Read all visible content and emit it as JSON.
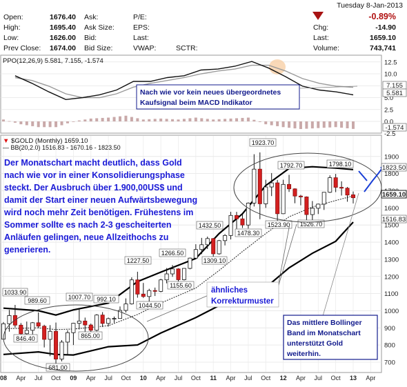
{
  "quote": {
    "open_label": "Open:",
    "open_value": "1676.40",
    "high_label": "High:",
    "high_value": "1695.40",
    "low_label": "Low:",
    "low_value": "1626.00",
    "prevclose_label": "Prev Close:",
    "prevclose_value": "1674.00",
    "ask_label": "Ask:",
    "asksize_label": "Ask Size:",
    "bid_label": "Bid:",
    "bidsize_label": "Bid Size:",
    "pe_label": "P/E:",
    "eps_label": "EPS:",
    "last_label": "Last:",
    "vwap_label": "VWAP:",
    "sctr_label": "SCTR:",
    "date": "Tuesday  8-Jan-2013",
    "pct_change": "-0.89%",
    "chg_label": "Chg:",
    "chg_value": "-14.90",
    "last2_label": "Last:",
    "last_value": "1659.10",
    "volume_label": "Volume:",
    "volume_value": "743,741",
    "down_color": "#b01010"
  },
  "ppo": {
    "legend": "PPO(12,26,9) 5.581, 7.155, -1.574",
    "note_line1": "Nach wie vor kein neues übergeordnetes",
    "note_line2": "Kaufsignal beim MACD Indikator",
    "ticks": [
      "12.5",
      "10.0",
      "7.5",
      "5.0",
      "2.5",
      "0.0",
      "-2.5"
    ],
    "badge_signal": "7.155",
    "badge_ppo": "5.581",
    "badge_hist": "-1.574"
  },
  "main": {
    "legend_symbol": "$GOLD (Monthly) 1659.10",
    "legend_bb": "BB(20,2.0) 1516.83 - 1670.16 - 1823.50",
    "text_lines": [
      "Der Monatschart macht deutlich, dass Gold",
      "nach wie vor in einer Konsolidierungsphase",
      "steckt. Der Ausbruch über 1.900,00US$ und",
      "damit der Start einer neuen Aufwärtsbewegung",
      "wird noch mehr Zeit benötigen. Frühestens im",
      "Sommer sollte es nach 2-3 gescheiterten",
      "Anläufen gelingen, neue Allzeithochs zu",
      "generieren."
    ],
    "note_korr_line1": "ähnliches",
    "note_korr_line2": "Korrekturmuster",
    "note_bb_lines": [
      "Das mittlere Bollinger",
      "Band im Monatschart",
      "unterstützt Gold",
      "weiterhin."
    ],
    "badge_upper": "1823.50",
    "badge_last": "1659.10",
    "badge_lower": "1516.83"
  },
  "chart_data": [
    {
      "type": "line",
      "title": "PPO(12,26,9) 5.581, 7.155, -1.574",
      "ylim": [
        -2.5,
        12.5
      ],
      "y_ticks": [
        12.5,
        10.0,
        7.5,
        5.0,
        2.5,
        0.0,
        -2.5
      ],
      "x": [
        "2008-03",
        "2008-06",
        "2008-09",
        "2008-12",
        "2009-03",
        "2009-06",
        "2009-09",
        "2009-12",
        "2010-03",
        "2010-06",
        "2010-09",
        "2010-12",
        "2011-03",
        "2011-06",
        "2011-09",
        "2011-12",
        "2012-03",
        "2012-06",
        "2012-09",
        "2012-12",
        "2013-01"
      ],
      "series": [
        {
          "name": "PPO",
          "values": [
            9.6,
            8.0,
            6.2,
            4.6,
            5.0,
            5.6,
            6.6,
            8.4,
            8.4,
            9.2,
            9.6,
            10.8,
            11.0,
            11.6,
            12.6,
            11.2,
            9.4,
            7.4,
            6.6,
            6.2,
            5.581
          ]
        },
        {
          "name": "Signal",
          "values": [
            9.2,
            8.6,
            7.4,
            5.8,
            5.0,
            5.0,
            5.8,
            7.2,
            8.0,
            8.6,
            9.2,
            10.0,
            10.6,
            11.0,
            11.8,
            11.8,
            10.6,
            9.0,
            8.0,
            7.4,
            7.155
          ]
        },
        {
          "name": "Histogram",
          "values": [
            0.4,
            -0.6,
            -1.2,
            -1.2,
            0.0,
            0.6,
            0.8,
            1.2,
            0.4,
            0.6,
            0.4,
            0.8,
            0.4,
            0.6,
            0.8,
            -0.6,
            -1.2,
            -1.6,
            -1.4,
            -1.2,
            -1.574
          ]
        }
      ],
      "grid": true
    },
    {
      "type": "candlestick",
      "title": "$GOLD (Monthly) 1659.10",
      "ylim": [
        650,
        1950
      ],
      "y_ticks": [
        700,
        800,
        900,
        1000,
        1100,
        1200,
        1300,
        1400,
        1500,
        1600,
        1700,
        1800,
        1900
      ],
      "x_ticks": [
        "08",
        "Apr",
        "Jul",
        "Oct",
        "09",
        "Apr",
        "Jul",
        "Oct",
        "10",
        "Apr",
        "Jul",
        "Oct",
        "11",
        "Apr",
        "Jul",
        "Oct",
        "12",
        "Apr",
        "Jul",
        "Oct",
        "13",
        "Apr"
      ],
      "annotations": [
        "1033.90",
        "989.60",
        "846.40",
        "681.00",
        "1007.70",
        "992.10",
        "865.00",
        "1227.50",
        "1155.60",
        "1044.50",
        "1266.50",
        "1432.50",
        "1309.10",
        "1478.30",
        "1923.70",
        "1792.70",
        "1523.90",
        "1798.10",
        "1526.70"
      ],
      "candles": [
        {
          "x": "2008-01",
          "o": 834,
          "h": 934,
          "l": 833,
          "c": 924
        },
        {
          "x": "2008-02",
          "o": 924,
          "h": 1005,
          "l": 878,
          "c": 972
        },
        {
          "x": "2008-03",
          "o": 972,
          "h": 1033.9,
          "l": 902,
          "c": 916
        },
        {
          "x": "2008-04",
          "o": 916,
          "h": 928,
          "l": 851,
          "c": 866
        },
        {
          "x": "2008-05",
          "o": 866,
          "h": 937,
          "l": 846.4,
          "c": 886
        },
        {
          "x": "2008-06",
          "o": 886,
          "h": 934,
          "l": 862,
          "c": 930
        },
        {
          "x": "2008-07",
          "o": 930,
          "h": 989.6,
          "l": 899,
          "c": 910
        },
        {
          "x": "2008-08",
          "o": 910,
          "h": 918,
          "l": 786,
          "c": 833
        },
        {
          "x": "2008-09",
          "o": 833,
          "h": 916,
          "l": 735,
          "c": 880
        },
        {
          "x": "2008-10",
          "o": 880,
          "h": 931,
          "l": 681,
          "c": 718
        },
        {
          "x": "2008-11",
          "o": 718,
          "h": 829,
          "l": 705,
          "c": 817
        },
        {
          "x": "2008-12",
          "o": 817,
          "h": 886,
          "l": 745,
          "c": 872
        },
        {
          "x": "2009-01",
          "o": 872,
          "h": 929,
          "l": 800,
          "c": 927
        },
        {
          "x": "2009-02",
          "o": 927,
          "h": 1007.7,
          "l": 891,
          "c": 940
        },
        {
          "x": "2009-03",
          "o": 940,
          "h": 960,
          "l": 867,
          "c": 917
        },
        {
          "x": "2009-04",
          "o": 917,
          "h": 925,
          "l": 865,
          "c": 886
        },
        {
          "x": "2009-05",
          "o": 886,
          "h": 980,
          "l": 880,
          "c": 975
        },
        {
          "x": "2009-06",
          "o": 975,
          "h": 992.1,
          "l": 905,
          "c": 926
        },
        {
          "x": "2009-07",
          "o": 926,
          "h": 960,
          "l": 908,
          "c": 954
        },
        {
          "x": "2009-08",
          "o": 954,
          "h": 966,
          "l": 930,
          "c": 955
        },
        {
          "x": "2009-09",
          "o": 955,
          "h": 1025,
          "l": 953,
          "c": 1002
        },
        {
          "x": "2009-10",
          "o": 1002,
          "h": 1072,
          "l": 990,
          "c": 1040
        },
        {
          "x": "2009-11",
          "o": 1040,
          "h": 1195,
          "l": 1036,
          "c": 1180
        },
        {
          "x": "2009-12",
          "o": 1180,
          "h": 1227.5,
          "l": 1076,
          "c": 1097
        },
        {
          "x": "2010-01",
          "o": 1097,
          "h": 1162,
          "l": 1075,
          "c": 1083
        },
        {
          "x": "2010-02",
          "o": 1083,
          "h": 1128,
          "l": 1044.5,
          "c": 1118
        },
        {
          "x": "2010-03",
          "o": 1118,
          "h": 1135,
          "l": 1086,
          "c": 1113
        },
        {
          "x": "2010-04",
          "o": 1113,
          "h": 1186,
          "l": 1108,
          "c": 1180
        },
        {
          "x": "2010-05",
          "o": 1180,
          "h": 1249,
          "l": 1160,
          "c": 1215
        },
        {
          "x": "2010-06",
          "o": 1215,
          "h": 1266.5,
          "l": 1198,
          "c": 1244
        },
        {
          "x": "2010-07",
          "o": 1244,
          "h": 1248,
          "l": 1155.6,
          "c": 1181
        },
        {
          "x": "2010-08",
          "o": 1181,
          "h": 1249,
          "l": 1177,
          "c": 1247
        },
        {
          "x": "2010-09",
          "o": 1247,
          "h": 1310,
          "l": 1242,
          "c": 1307
        },
        {
          "x": "2010-10",
          "o": 1307,
          "h": 1388,
          "l": 1312,
          "c": 1357
        },
        {
          "x": "2010-11",
          "o": 1357,
          "h": 1425,
          "l": 1330,
          "c": 1385
        },
        {
          "x": "2010-12",
          "o": 1385,
          "h": 1432.5,
          "l": 1360,
          "c": 1421
        },
        {
          "x": "2011-01",
          "o": 1421,
          "h": 1424,
          "l": 1309.1,
          "c": 1332
        },
        {
          "x": "2011-02",
          "o": 1332,
          "h": 1413,
          "l": 1327,
          "c": 1409
        },
        {
          "x": "2011-03",
          "o": 1409,
          "h": 1447,
          "l": 1381,
          "c": 1439
        },
        {
          "x": "2011-04",
          "o": 1439,
          "h": 1577,
          "l": 1416,
          "c": 1556
        },
        {
          "x": "2011-05",
          "o": 1556,
          "h": 1577,
          "l": 1478.3,
          "c": 1536
        },
        {
          "x": "2011-06",
          "o": 1536,
          "h": 1561,
          "l": 1483,
          "c": 1500
        },
        {
          "x": "2011-07",
          "o": 1500,
          "h": 1632,
          "l": 1480,
          "c": 1628
        },
        {
          "x": "2011-08",
          "o": 1628,
          "h": 1913,
          "l": 1608,
          "c": 1826
        },
        {
          "x": "2011-09",
          "o": 1826,
          "h": 1923.7,
          "l": 1534,
          "c": 1624
        },
        {
          "x": "2011-10",
          "o": 1624,
          "h": 1764,
          "l": 1600,
          "c": 1722
        },
        {
          "x": "2011-11",
          "o": 1722,
          "h": 1803,
          "l": 1669,
          "c": 1746
        },
        {
          "x": "2011-12",
          "o": 1746,
          "h": 1763,
          "l": 1523.9,
          "c": 1566
        },
        {
          "x": "2012-01",
          "o": 1566,
          "h": 1764,
          "l": 1564,
          "c": 1737
        },
        {
          "x": "2012-02",
          "o": 1737,
          "h": 1792.7,
          "l": 1693,
          "c": 1711
        },
        {
          "x": "2012-03",
          "o": 1711,
          "h": 1714,
          "l": 1627,
          "c": 1669
        },
        {
          "x": "2012-04",
          "o": 1669,
          "h": 1676,
          "l": 1615,
          "c": 1664
        },
        {
          "x": "2012-05",
          "o": 1664,
          "h": 1667,
          "l": 1527,
          "c": 1561
        },
        {
          "x": "2012-06",
          "o": 1561,
          "h": 1640,
          "l": 1526.7,
          "c": 1598
        },
        {
          "x": "2012-07",
          "o": 1598,
          "h": 1625,
          "l": 1564,
          "c": 1622
        },
        {
          "x": "2012-08",
          "o": 1622,
          "h": 1692,
          "l": 1588,
          "c": 1691
        },
        {
          "x": "2012-09",
          "o": 1691,
          "h": 1790,
          "l": 1687,
          "c": 1776
        },
        {
          "x": "2012-10",
          "o": 1776,
          "h": 1798.1,
          "l": 1692,
          "c": 1720
        },
        {
          "x": "2012-11",
          "o": 1720,
          "h": 1755,
          "l": 1672,
          "c": 1715
        },
        {
          "x": "2012-12",
          "o": 1715,
          "h": 1722,
          "l": 1636,
          "c": 1675
        },
        {
          "x": "2013-01",
          "o": 1676.4,
          "h": 1695.4,
          "l": 1626,
          "c": 1659.1
        }
      ],
      "bollinger": {
        "upper": [
          [
            0,
            1015
          ],
          [
            6,
            1000
          ],
          [
            9,
            975
          ],
          [
            12,
            1005
          ],
          [
            18,
            1045
          ],
          [
            23,
            1170
          ],
          [
            27,
            1225
          ],
          [
            33,
            1305
          ],
          [
            37,
            1450
          ],
          [
            41,
            1565
          ],
          [
            45,
            1730
          ],
          [
            49,
            1830
          ],
          [
            53,
            1840
          ],
          [
            57,
            1832
          ],
          [
            60,
            1823.5
          ]
        ],
        "middle": [
          [
            0,
            895
          ],
          [
            6,
            900
          ],
          [
            9,
            890
          ],
          [
            12,
            893
          ],
          [
            18,
            913
          ],
          [
            23,
            978
          ],
          [
            27,
            1045
          ],
          [
            33,
            1132
          ],
          [
            37,
            1235
          ],
          [
            41,
            1345
          ],
          [
            45,
            1450
          ],
          [
            49,
            1548
          ],
          [
            53,
            1605
          ],
          [
            57,
            1643
          ],
          [
            60,
            1670.16
          ]
        ],
        "lower": [
          [
            0,
            745
          ],
          [
            6,
            760
          ],
          [
            9,
            745
          ],
          [
            12,
            742
          ],
          [
            18,
            790
          ],
          [
            23,
            800
          ],
          [
            27,
            870
          ],
          [
            33,
            960
          ],
          [
            37,
            1030
          ],
          [
            41,
            1095
          ],
          [
            45,
            1135
          ],
          [
            49,
            1250
          ],
          [
            53,
            1335
          ],
          [
            57,
            1405
          ],
          [
            60,
            1516.83
          ]
        ]
      },
      "grid": true
    }
  ]
}
